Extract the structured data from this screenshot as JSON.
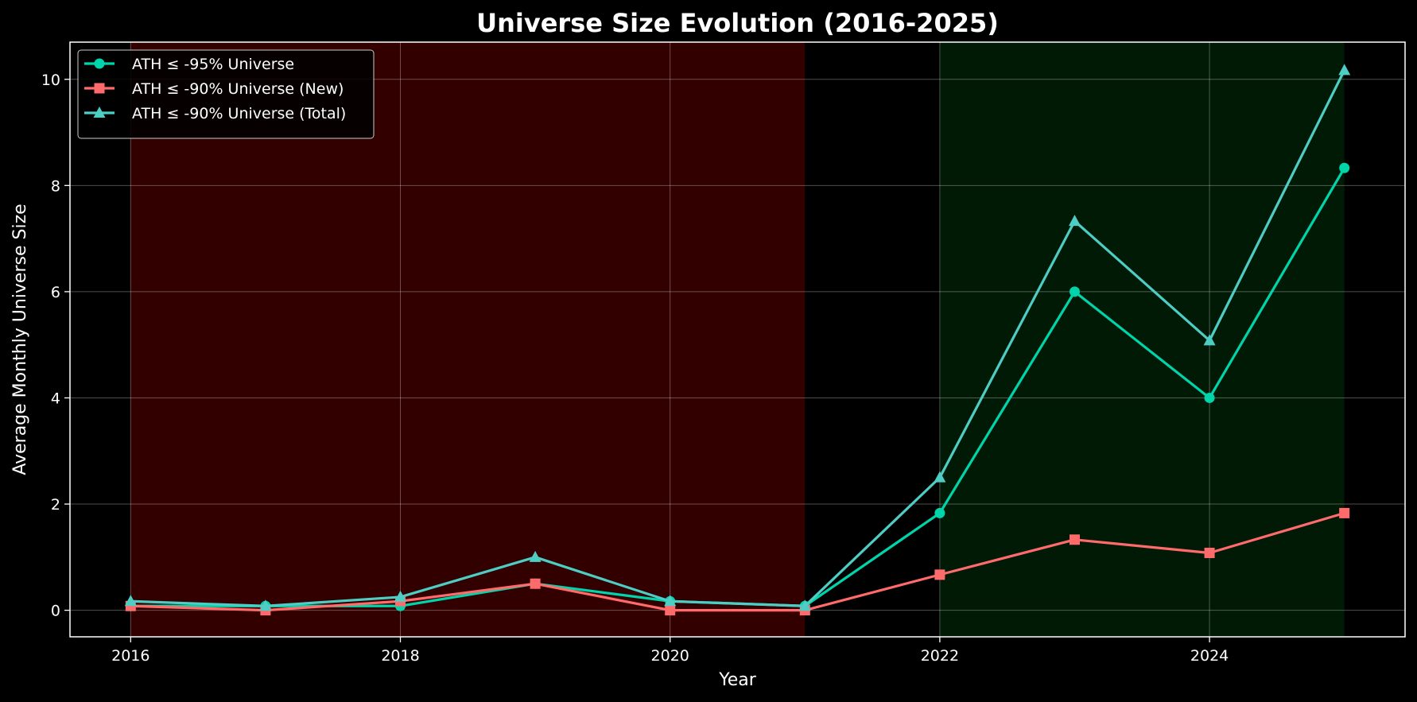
{
  "chart_data": {
    "type": "line",
    "title": "Universe Size Evolution (2016-2025)",
    "xlabel": "Year",
    "ylabel": "Average Monthly Universe Size",
    "x": [
      2016,
      2017,
      2018,
      2019,
      2020,
      2021,
      2022,
      2023,
      2024,
      2025
    ],
    "xlim": [
      2015.55,
      2025.45
    ],
    "ylim": [
      -0.5,
      10.7
    ],
    "xticks": [
      2016,
      2018,
      2020,
      2022,
      2024
    ],
    "yticks": [
      0,
      2,
      4,
      6,
      8,
      10
    ],
    "grid": true,
    "legend_position": "top-left",
    "shaded_regions": [
      {
        "x_start": 2016,
        "x_end": 2021,
        "color": "#330000"
      },
      {
        "x_start": 2022,
        "x_end": 2025,
        "color": "#001a05"
      }
    ],
    "series": [
      {
        "name": "ATH ≤ -95% Universe",
        "color": "#00d4aa",
        "marker": "circle",
        "values": [
          0.08,
          0.08,
          0.08,
          0.5,
          0.17,
          0.08,
          1.83,
          6.0,
          4.0,
          8.33
        ]
      },
      {
        "name": "ATH ≤ -90% Universe (New)",
        "color": "#ff6b6b",
        "marker": "square",
        "values": [
          0.08,
          0.0,
          0.17,
          0.5,
          0.0,
          0.0,
          0.67,
          1.33,
          1.08,
          1.83
        ]
      },
      {
        "name": "ATH ≤ -90% Universe (Total)",
        "color": "#4ecdc4",
        "marker": "triangle",
        "values": [
          0.17,
          0.08,
          0.25,
          1.0,
          0.17,
          0.08,
          2.5,
          7.33,
          5.08,
          10.17
        ]
      }
    ]
  }
}
